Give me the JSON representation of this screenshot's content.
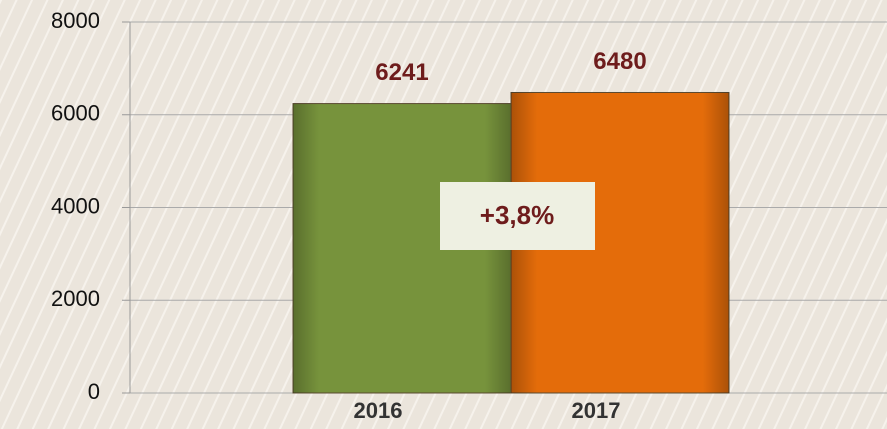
{
  "chart_data": {
    "type": "bar",
    "categories": [
      "2016",
      "2017"
    ],
    "values": [
      6241,
      6480
    ],
    "colors": [
      "#77933c",
      "#e46c0a"
    ],
    "ylim": [
      0,
      8000
    ],
    "yticks": [
      0,
      2000,
      4000,
      6000,
      8000
    ],
    "grid": true,
    "annotation": "+3,8%"
  }
}
